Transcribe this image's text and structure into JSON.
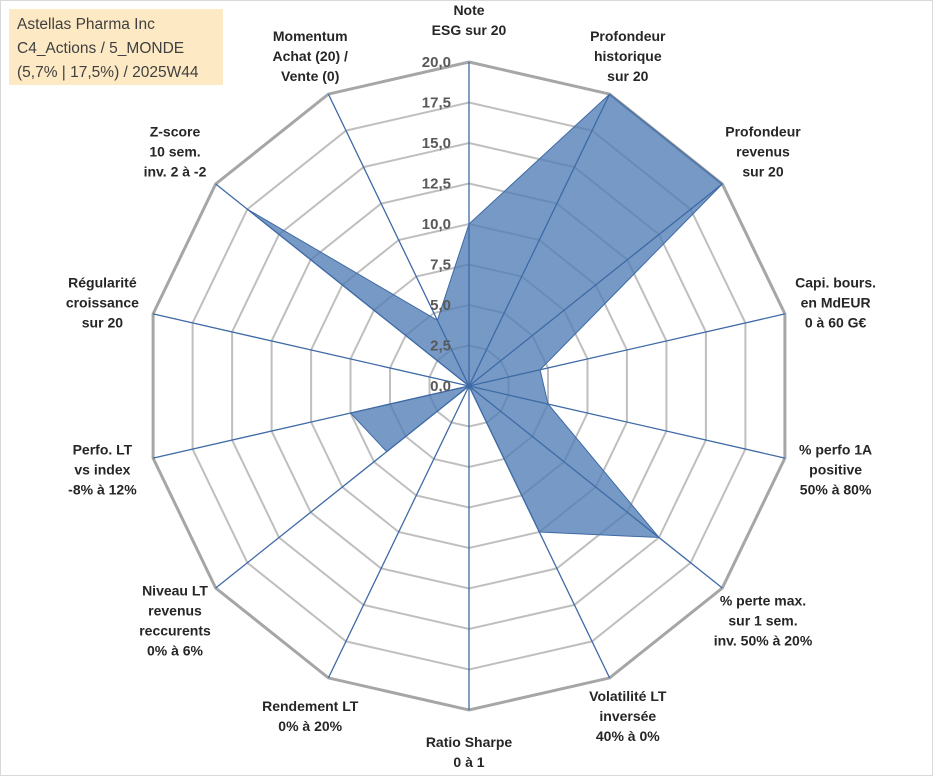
{
  "title_box": {
    "line1": "Astellas Pharma Inc",
    "line2": "C4_Actions / 5_MONDE",
    "line3": "(5,7% | 17,5%) / 2025W44",
    "background": "#fde9c4"
  },
  "chart_data": {
    "type": "radar",
    "title": "Astellas Pharma Inc",
    "rmin": 0,
    "rmax": 20,
    "tick_step": 2.5,
    "ticks": [
      "0,0",
      "2,5",
      "5,0",
      "7,5",
      "10,0",
      "12,5",
      "15,0",
      "17,5",
      "20,0"
    ],
    "grid": true,
    "colors": {
      "fill": "#4f7db5",
      "outline": "#3e6aa6",
      "spoke": "#3e6aa6",
      "ring": "#bfbfbf",
      "outer_ring": "#a6a6a6"
    },
    "axes": [
      {
        "label": [
          "Note",
          "ESG sur 20"
        ]
      },
      {
        "label": [
          "Profondeur",
          "historique",
          "sur 20"
        ]
      },
      {
        "label": [
          "Profondeur",
          "revenus",
          "sur 20"
        ]
      },
      {
        "label": [
          "Capi. bours.",
          "en MdEUR",
          "0 à 60 G€"
        ]
      },
      {
        "label": [
          "% perfo 1A",
          "positive",
          "50% à 80%"
        ]
      },
      {
        "label": [
          "% perte max.",
          "sur 1 sem.",
          "inv. 50% à 20%"
        ]
      },
      {
        "label": [
          "Volatilité LT",
          "inversée",
          "40% à 0%"
        ]
      },
      {
        "label": [
          "Ratio Sharpe",
          "0 à 1"
        ]
      },
      {
        "label": [
          "Rendement LT",
          "0% à 20%"
        ]
      },
      {
        "label": [
          "Niveau LT",
          "revenus",
          "reccurents",
          "0% à 6%"
        ]
      },
      {
        "label": [
          "Perfo. LT",
          "vs index",
          "-8% à 12%"
        ]
      },
      {
        "label": [
          "Régularité",
          "croissance",
          "sur 20"
        ]
      },
      {
        "label": [
          "Z-score",
          "10 sem.",
          "inv. 2 à -2"
        ]
      },
      {
        "label": [
          "Momentum",
          "Achat (20) /",
          "Vente (0)"
        ]
      }
    ],
    "series": [
      {
        "name": "Astellas Pharma Inc",
        "values": [
          10.0,
          20.0,
          20.0,
          4.5,
          5.0,
          15.0,
          10.0,
          0.0,
          0.0,
          6.5,
          7.5,
          0.0,
          17.5,
          4.5
        ]
      }
    ]
  }
}
